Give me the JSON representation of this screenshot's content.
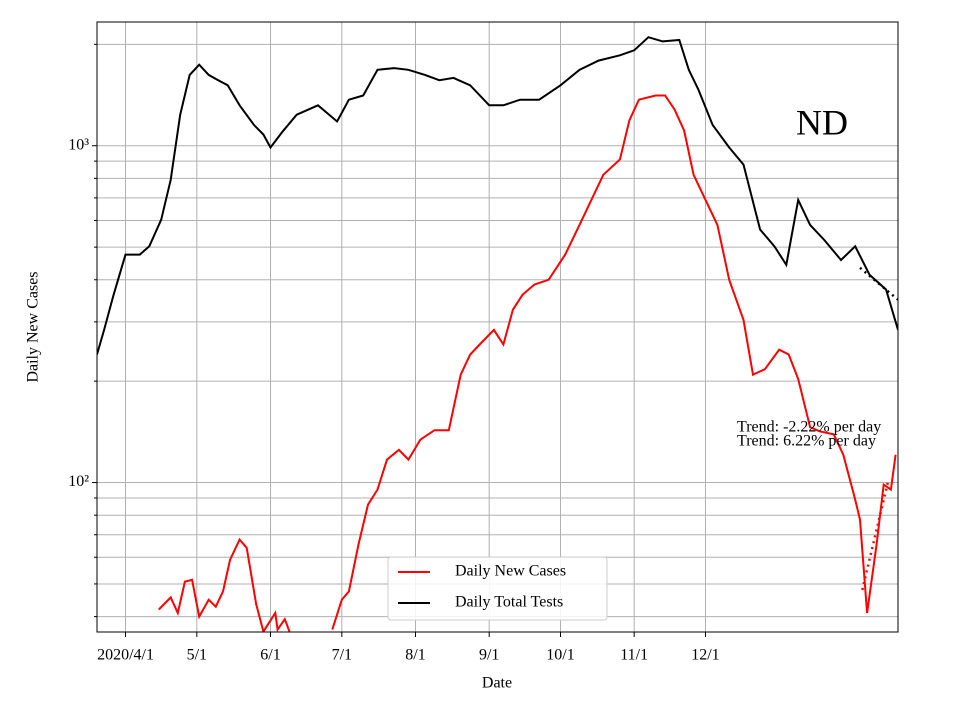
{
  "chart_data": {
    "type": "line",
    "annotation": "ND",
    "x_label": "Date",
    "y_label": "Daily New Cases",
    "log_scale_y": true,
    "grid": true,
    "legend": "lower center",
    "xlim": [
      "2020-03-20",
      "2021-02-20"
    ],
    "xticks": [
      {
        "value": "2020-04-01",
        "label": "2020/4/1"
      },
      {
        "value": "2020-05-01",
        "label": "5/1"
      },
      {
        "value": "2020-06-01",
        "label": "6/1"
      },
      {
        "value": "2020-07-01",
        "label": "7/1"
      },
      {
        "value": "2020-08-01",
        "label": "8/1"
      },
      {
        "value": "2020-09-01",
        "label": "9/1"
      },
      {
        "value": "2020-10-01",
        "label": "10/1"
      },
      {
        "value": "2020-11-01",
        "label": "11/1"
      },
      {
        "value": "2020-12-01",
        "label": "12/1"
      }
    ],
    "ylim": [
      36,
      2330
    ],
    "yticks": [
      {
        "value": 100,
        "label": "10²"
      },
      {
        "value": 1000,
        "label": "10³"
      }
    ],
    "yticks_minor": [
      40,
      50,
      60,
      70,
      80,
      90,
      200,
      300,
      400,
      500,
      600,
      700,
      800,
      900,
      2000
    ],
    "series": [
      {
        "name": "Daily New Cases",
        "color": "#ff0000",
        "x": [
          "2020-04-15",
          "2020-04-20",
          "2020-04-23",
          "2020-04-26",
          "2020-04-29",
          "2020-05-02",
          "2020-05-06",
          "2020-05-09",
          "2020-05-12",
          "2020-05-15",
          "2020-05-19",
          "2020-05-22",
          "2020-05-26",
          "2020-05-29",
          "2020-06-03",
          "2020-06-04",
          "2020-06-07",
          "2020-06-09",
          "2020-06-15",
          "2020-06-27",
          "2020-07-01",
          "2020-07-04",
          "2020-07-08",
          "2020-07-12",
          "2020-07-16",
          "2020-07-20",
          "2020-07-25",
          "2020-07-29",
          "2020-08-03",
          "2020-08-09",
          "2020-08-15",
          "2020-08-20",
          "2020-08-24",
          "2020-08-28",
          "2020-09-03",
          "2020-09-07",
          "2020-09-11",
          "2020-09-15",
          "2020-09-20",
          "2020-09-26",
          "2020-10-03",
          "2020-10-09",
          "2020-10-15",
          "2020-10-19",
          "2020-10-26",
          "2020-10-30",
          "2020-11-03",
          "2020-11-10",
          "2020-11-14",
          "2020-11-18",
          "2020-11-22",
          "2020-11-26",
          "2020-11-30",
          "2020-12-06",
          "2020-12-11",
          "2020-12-17",
          "2020-12-21",
          "2020-12-26",
          "2021-01-01",
          "2021-01-05",
          "2021-01-09",
          "2021-01-14",
          "2021-01-18",
          "2021-01-24",
          "2021-01-28",
          "2021-02-02",
          "2021-02-04",
          "2021-02-07",
          "2021-02-11",
          "2021-02-14",
          "2021-02-17",
          "2021-02-19"
        ],
        "values": [
          42,
          45.6,
          41,
          50.8,
          51.4,
          40,
          44.9,
          42.8,
          47.5,
          59,
          67.7,
          64,
          43.5,
          36.1,
          41,
          36.6,
          39.3,
          36.1,
          null,
          36.6,
          44.9,
          47.5,
          65.5,
          86,
          95.3,
          117,
          125,
          117,
          134,
          143,
          143,
          209,
          240,
          257,
          284,
          257,
          326,
          361,
          387,
          400,
          475,
          582,
          715,
          820,
          910,
          1190,
          1370,
          1410,
          1410,
          1280,
          1110,
          820,
          715,
          582,
          400,
          304,
          209,
          217,
          248,
          240,
          203,
          146,
          142,
          139,
          121,
          89,
          77.6,
          41,
          65.5,
          98.6,
          95.3,
          121
        ]
      },
      {
        "name": "Daily Total Tests",
        "color": "#000000",
        "x": [
          "2020-03-20",
          "2020-03-23",
          "2020-03-27",
          "2020-04-01",
          "2020-04-07",
          "2020-04-11",
          "2020-04-16",
          "2020-04-20",
          "2020-04-24",
          "2020-04-28",
          "2020-05-02",
          "2020-05-06",
          "2020-05-10",
          "2020-05-14",
          "2020-05-19",
          "2020-05-25",
          "2020-05-29",
          "2020-06-01",
          "2020-06-06",
          "2020-06-12",
          "2020-06-21",
          "2020-06-29",
          "2020-07-04",
          "2020-07-10",
          "2020-07-16",
          "2020-07-23",
          "2020-07-29",
          "2020-08-05",
          "2020-08-11",
          "2020-08-17",
          "2020-08-24",
          "2020-09-01",
          "2020-09-07",
          "2020-09-14",
          "2020-09-22",
          "2020-10-01",
          "2020-10-09",
          "2020-10-17",
          "2020-10-26",
          "2020-11-01",
          "2020-11-07",
          "2020-11-13",
          "2020-11-20",
          "2020-11-24",
          "2020-11-28",
          "2020-12-04",
          "2020-12-11",
          "2020-12-17",
          "2020-12-24",
          "2020-12-30",
          "2021-01-04",
          "2021-01-09",
          "2021-01-14",
          "2021-01-20",
          "2021-01-27",
          "2021-02-02",
          "2021-02-08",
          "2021-02-15",
          "2021-02-20"
        ],
        "values": [
          240,
          284,
          361,
          475,
          475,
          503,
          603,
          792,
          1236,
          1623,
          1740,
          1623,
          1565,
          1512,
          1318,
          1153,
          1080,
          988,
          1100,
          1236,
          1318,
          1180,
          1370,
          1410,
          1680,
          1700,
          1680,
          1623,
          1565,
          1590,
          1512,
          1318,
          1318,
          1370,
          1370,
          1512,
          1680,
          1790,
          1855,
          1920,
          2100,
          2040,
          2060,
          1680,
          1470,
          1153,
          988,
          879,
          564,
          503,
          443,
          690,
          582,
          525,
          458,
          503,
          414,
          374,
          284
        ]
      }
    ],
    "trends": [
      {
        "label": "Trend: -2.22% per day",
        "color": "#000000",
        "x": [
          "2021-02-04",
          "2021-02-20"
        ],
        "values": [
          434,
          349
        ]
      },
      {
        "label": "Trend: 6.22% per day",
        "color": "#ff0000",
        "x": [
          "2021-02-05",
          "2021-02-16"
        ],
        "values": [
          48,
          102
        ]
      }
    ]
  }
}
